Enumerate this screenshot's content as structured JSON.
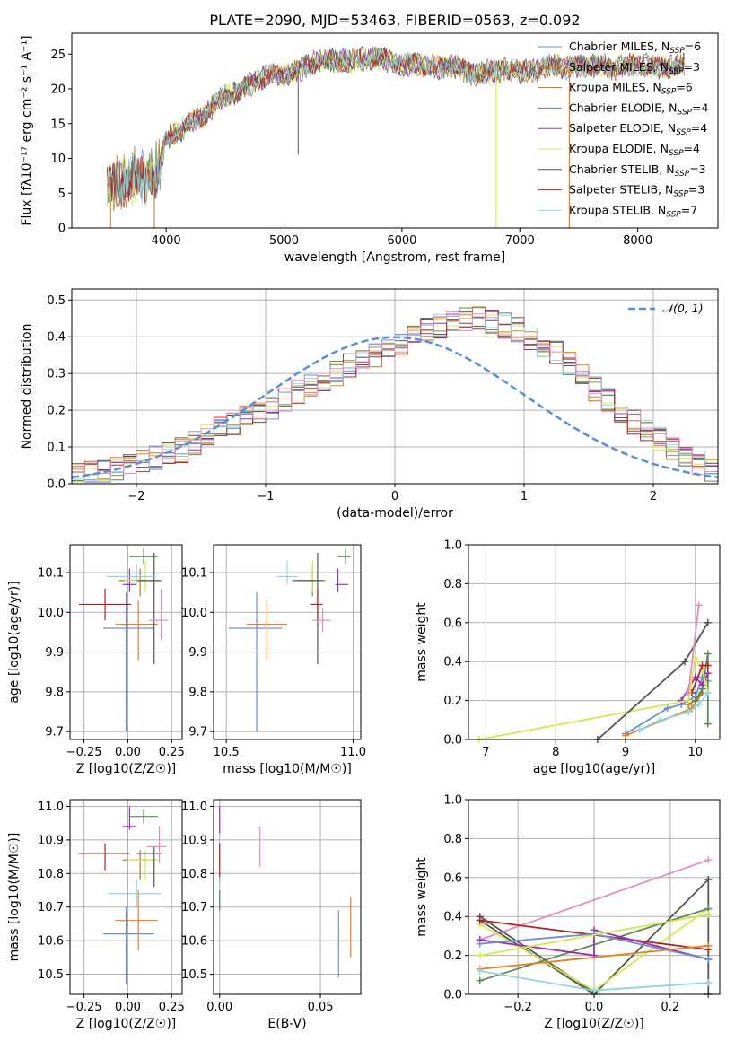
{
  "colors": {
    "chabrier_miles": "#6b8fd6",
    "salpeter_miles": "#e6801f",
    "kroupa_miles": "#b07a1a",
    "chabrier_elodie": "#5a8a5a",
    "salpeter_elodie": "#9b30b0",
    "kroupa_elodie": "#d6e84a",
    "chabrier_stelib": "#555555",
    "salpeter_stelib": "#b22222",
    "kroupa_stelib": "#8ad7e0",
    "pink": "#e88bbf",
    "normal": "#5b8ed9"
  },
  "chart_data": [
    {
      "type": "line",
      "title": "PLATE=2090, MJD=53463, FIBERID=0563, z=0.092",
      "xlabel": "wavelength [Angstrom, rest frame]",
      "ylabel": "Flux [fλ10⁻¹⁷ erg cm⁻² s⁻¹ A⁻¹]",
      "xlim": [
        3200,
        8680
      ],
      "ylim": [
        0,
        28
      ],
      "xticks": [
        "4000",
        "5000",
        "6000",
        "7000",
        "8000"
      ],
      "yticks": [
        "0",
        "5",
        "10",
        "15",
        "20",
        "25"
      ],
      "legend_position": "upper-right",
      "legend": [
        "Chabrier MILES, NSSP=6",
        "Salpeter MILES, NSSP=3",
        "Kroupa MILES, NSSP=6",
        "Chabrier ELODIE, NSSP=4",
        "Salpeter ELODIE, NSSP=4",
        "Kroupa ELODIE, NSSP=4",
        "Chabrier STELIB, NSSP=3",
        "Salpeter STELIB, NSSP=3",
        "Kroupa STELIB, NSSP=7"
      ],
      "spectrum_x": [
        3500,
        3550,
        3600,
        3650,
        3700,
        3750,
        3800,
        3850,
        3900,
        3950,
        4000,
        4100,
        4200,
        4300,
        4400,
        4500,
        4600,
        4700,
        4800,
        4900,
        5000,
        5100,
        5200,
        5300,
        5400,
        5500,
        5600,
        5700,
        5800,
        5900,
        6000,
        6100,
        6200,
        6300,
        6400,
        6500,
        6600,
        6700,
        6800,
        6900,
        7000,
        7100,
        7200,
        7300,
        7400,
        7600,
        7800,
        8000,
        8200,
        8400
      ],
      "spectrum_y": [
        5.5,
        6.0,
        6.5,
        7.0,
        7.2,
        7.5,
        7.0,
        8.0,
        7.5,
        9.0,
        13.0,
        13.8,
        15.0,
        16.0,
        17.5,
        19.0,
        19.5,
        20.5,
        21.5,
        22.0,
        22.0,
        22.5,
        23.5,
        24.0,
        24.0,
        24.0,
        24.0,
        24.5,
        24.5,
        24.0,
        23.5,
        23.5,
        23.5,
        23.0,
        23.5,
        23.0,
        22.0,
        22.5,
        22.5,
        23.0,
        22.5,
        22.5,
        23.0,
        23.5,
        23.0,
        23.5,
        23.0,
        23.5,
        23.0,
        23.5
      ]
    },
    {
      "type": "bar",
      "xlabel": "(data-model)/error",
      "ylabel": "Normed distribution",
      "xlim": [
        -2.5,
        2.5
      ],
      "ylim": [
        0,
        0.53
      ],
      "xticks": [
        "−2",
        "−1",
        "0",
        "1",
        "2"
      ],
      "yticks": [
        "0.0",
        "0.1",
        "0.2",
        "0.3",
        "0.4",
        "0.5"
      ],
      "legend": [
        "N(0,1)"
      ],
      "bin_width": 0.1,
      "bin_start": -2.5,
      "hist_mean": [
        0.02,
        0.03,
        0.03,
        0.04,
        0.05,
        0.06,
        0.07,
        0.08,
        0.09,
        0.11,
        0.13,
        0.15,
        0.16,
        0.18,
        0.2,
        0.21,
        0.23,
        0.25,
        0.27,
        0.28,
        0.3,
        0.32,
        0.33,
        0.35,
        0.37,
        0.38,
        0.4,
        0.42,
        0.43,
        0.44,
        0.45,
        0.45,
        0.44,
        0.43,
        0.42,
        0.4,
        0.38,
        0.36,
        0.33,
        0.3,
        0.26,
        0.23,
        0.2,
        0.17,
        0.15,
        0.12,
        0.1,
        0.08,
        0.06,
        0.04
      ],
      "series": [
        {
          "name": "N(0,1)",
          "mu": 0,
          "sigma": 1
        }
      ]
    },
    {
      "type": "scatter",
      "xlabel": "Z [log10(Z/Z☉)]",
      "ylabel": "age  [log10(age/yr)]",
      "xlim": [
        -0.33,
        0.31
      ],
      "ylim": [
        9.68,
        10.17
      ],
      "xticks": [
        "−0.25",
        "0.00",
        "0.25"
      ],
      "yticks": [
        "9.7",
        "9.8",
        "9.9",
        "10.0",
        "10.1"
      ],
      "points": [
        {
          "x": -0.01,
          "y": 9.96,
          "xerr": [
            0.13,
            0.16
          ],
          "yerr": [
            0.26,
            0.09
          ],
          "c": "chabrier_miles"
        },
        {
          "x": 0.06,
          "y": 9.97,
          "xerr": [
            0.13,
            0.11
          ],
          "yerr": [
            0.09,
            0.06
          ],
          "c": "salpeter_miles"
        },
        {
          "x": 0.07,
          "y": 10.08,
          "xerr": [
            0.12,
            0.1
          ],
          "yerr": [
            0.04,
            0.03
          ],
          "c": "kroupa_miles"
        },
        {
          "x": 0.09,
          "y": 10.14,
          "xerr": [
            0.08,
            0.08
          ],
          "yerr": [
            0.02,
            0.02
          ],
          "c": "chabrier_elodie"
        },
        {
          "x": 0.01,
          "y": 10.07,
          "xerr": [
            0.04,
            0.04
          ],
          "yerr": [
            0.02,
            0.04
          ],
          "c": "salpeter_elodie"
        },
        {
          "x": 0.1,
          "y": 10.08,
          "xerr": [
            0.12,
            0.08
          ],
          "yerr": [
            0.03,
            0.05
          ],
          "c": "kroupa_elodie"
        },
        {
          "x": 0.15,
          "y": 10.08,
          "xerr": [
            0.1,
            0.04
          ],
          "yerr": [
            0.21,
            0.07
          ],
          "c": "chabrier_stelib"
        },
        {
          "x": -0.13,
          "y": 10.02,
          "xerr": [
            0.15,
            0.15
          ],
          "yerr": [
            0.04,
            0.04
          ],
          "c": "salpeter_stelib"
        },
        {
          "x": 0.05,
          "y": 10.09,
          "xerr": [
            0.17,
            0.11
          ],
          "yerr": [
            0.02,
            0.03
          ],
          "c": "kroupa_stelib"
        },
        {
          "x": 0.19,
          "y": 9.98,
          "xerr": [
            0.07,
            0.04
          ],
          "yerr": [
            0.05,
            0.08
          ],
          "c": "pink"
        }
      ]
    },
    {
      "type": "scatter",
      "xlabel": "mass [log10(M/M☉)]",
      "ylabel": "",
      "xlim": [
        10.45,
        11.03
      ],
      "ylim": [
        9.68,
        10.17
      ],
      "xticks": [
        "10.5",
        "11.0"
      ],
      "yticks": [
        "9.7",
        "9.8",
        "9.9",
        "10.0",
        "10.1"
      ],
      "points": [
        {
          "x": 10.62,
          "y": 9.96,
          "xerr": [
            0.11,
            0.1
          ],
          "yerr": [
            0.26,
            0.09
          ],
          "c": "chabrier_miles"
        },
        {
          "x": 10.66,
          "y": 9.97,
          "xerr": [
            0.08,
            0.08
          ],
          "yerr": [
            0.09,
            0.06
          ],
          "c": "salpeter_miles"
        },
        {
          "x": 10.84,
          "y": 10.08,
          "xerr": [
            0.06,
            0.05
          ],
          "yerr": [
            0.04,
            0.03
          ],
          "c": "kroupa_miles"
        },
        {
          "x": 10.97,
          "y": 10.14,
          "xerr": [
            0.03,
            0.02
          ],
          "yerr": [
            0.02,
            0.02
          ],
          "c": "chabrier_elodie"
        },
        {
          "x": 10.94,
          "y": 10.07,
          "xerr": [
            0.01,
            0.04
          ],
          "yerr": [
            0.02,
            0.04
          ],
          "c": "salpeter_elodie"
        },
        {
          "x": 10.84,
          "y": 10.08,
          "xerr": [
            0.04,
            0.03
          ],
          "yerr": [
            0.03,
            0.05
          ],
          "c": "kroupa_elodie"
        },
        {
          "x": 10.86,
          "y": 10.08,
          "xerr": [
            0.1,
            0.02
          ],
          "yerr": [
            0.21,
            0.07
          ],
          "c": "chabrier_stelib"
        },
        {
          "x": 10.86,
          "y": 10.02,
          "xerr": [
            0.03,
            0.02
          ],
          "yerr": [
            0.04,
            0.04
          ],
          "c": "salpeter_stelib"
        },
        {
          "x": 10.74,
          "y": 10.09,
          "xerr": [
            0.04,
            0.04
          ],
          "yerr": [
            0.02,
            0.04
          ],
          "c": "kroupa_stelib"
        },
        {
          "x": 10.88,
          "y": 9.98,
          "xerr": [
            0.04,
            0.03
          ],
          "yerr": [
            0.03,
            0.03
          ],
          "c": "pink"
        }
      ]
    },
    {
      "type": "line",
      "xlabel": "age  [log10(age/yr)]",
      "ylabel": "mass weight",
      "xlim": [
        6.75,
        10.35
      ],
      "ylim": [
        0,
        1.0
      ],
      "xticks": [
        "7",
        "8",
        "9",
        "10"
      ],
      "yticks": [
        "0.0",
        "0.2",
        "0.4",
        "0.6",
        "0.8",
        "1.0"
      ],
      "series": [
        {
          "c": "chabrier_miles",
          "x": [
            9.0,
            9.6,
            9.8,
            10.0,
            10.1,
            10.18
          ],
          "y": [
            0.03,
            0.16,
            0.18,
            0.22,
            0.32,
            0.3
          ]
        },
        {
          "c": "salpeter_miles",
          "x": [
            9.0,
            9.95,
            10.1
          ],
          "y": [
            0.02,
            0.16,
            0.24
          ]
        },
        {
          "c": "kroupa_miles",
          "x": [
            9.9,
            10.0,
            10.1
          ],
          "y": [
            0.18,
            0.2,
            0.24
          ]
        },
        {
          "c": "chabrier_elodie",
          "x": [
            10.0,
            10.1,
            10.18,
            10.18
          ],
          "y": [
            0.2,
            0.26,
            0.44,
            0.08
          ]
        },
        {
          "c": "salpeter_elodie",
          "x": [
            9.8,
            10.0,
            10.1,
            10.18
          ],
          "y": [
            0.2,
            0.32,
            0.28,
            0.34
          ]
        },
        {
          "c": "kroupa_elodie",
          "x": [
            6.9,
            9.9,
            10.0,
            10.1,
            10.18
          ],
          "y": [
            0.0,
            0.2,
            0.42,
            0.36,
            0.24
          ]
        },
        {
          "c": "chabrier_stelib",
          "x": [
            8.6,
            9.85,
            10.18
          ],
          "y": [
            0.0,
            0.4,
            0.6
          ]
        },
        {
          "c": "salpeter_stelib",
          "x": [
            9.95,
            10.1,
            10.18
          ],
          "y": [
            0.24,
            0.38,
            0.38
          ]
        },
        {
          "c": "kroupa_stelib",
          "x": [
            9.2,
            9.5,
            9.9,
            10.05,
            10.18
          ],
          "y": [
            0.05,
            0.1,
            0.14,
            0.18,
            0.24
          ]
        },
        {
          "c": "pink",
          "x": [
            9.9,
            10.05
          ],
          "y": [
            0.24,
            0.69
          ]
        }
      ]
    },
    {
      "type": "scatter",
      "xlabel": "Z [log10(Z/Z☉)]",
      "ylabel": "mass [log10(M/M☉)]",
      "xlim": [
        -0.33,
        0.31
      ],
      "ylim": [
        10.44,
        11.02
      ],
      "xticks": [
        "−0.25",
        "0.00",
        "0.25"
      ],
      "yticks": [
        "10.5",
        "10.6",
        "10.7",
        "10.8",
        "10.9",
        "11.0"
      ],
      "points": [
        {
          "x": -0.01,
          "y": 10.62,
          "xerr": [
            0.13,
            0.16
          ],
          "yerr": [
            0.15,
            0.08
          ],
          "c": "chabrier_miles"
        },
        {
          "x": 0.06,
          "y": 10.66,
          "xerr": [
            0.13,
            0.11
          ],
          "yerr": [
            0.09,
            0.09
          ],
          "c": "salpeter_miles"
        },
        {
          "x": 0.07,
          "y": 10.84,
          "xerr": [
            0.1,
            0.1
          ],
          "yerr": [
            0.06,
            0.03
          ],
          "c": "kroupa_miles"
        },
        {
          "x": 0.09,
          "y": 10.97,
          "xerr": [
            0.08,
            0.08
          ],
          "yerr": [
            0.02,
            0.02
          ],
          "c": "chabrier_elodie"
        },
        {
          "x": 0.01,
          "y": 10.94,
          "xerr": [
            0.04,
            0.04
          ],
          "yerr": [
            0.01,
            0.06
          ],
          "c": "salpeter_elodie"
        },
        {
          "x": 0.1,
          "y": 10.84,
          "xerr": [
            0.11,
            0.07
          ],
          "yerr": [
            0.06,
            0.03
          ],
          "c": "kroupa_elodie"
        },
        {
          "x": 0.15,
          "y": 10.86,
          "xerr": [
            0.1,
            0.04
          ],
          "yerr": [
            0.1,
            0.02
          ],
          "c": "chabrier_stelib"
        },
        {
          "x": -0.13,
          "y": 10.86,
          "xerr": [
            0.15,
            0.14
          ],
          "yerr": [
            0.05,
            0.03
          ],
          "c": "salpeter_stelib"
        },
        {
          "x": 0.05,
          "y": 10.74,
          "xerr": [
            0.16,
            0.14
          ],
          "yerr": [
            0.04,
            0.04
          ],
          "c": "kroupa_stelib"
        },
        {
          "x": 0.18,
          "y": 10.88,
          "xerr": [
            0.07,
            0.04
          ],
          "yerr": [
            0.05,
            0.06
          ],
          "c": "pink"
        }
      ]
    },
    {
      "type": "scatter",
      "xlabel": "E(B-V)",
      "ylabel": "",
      "xlim": [
        -0.003,
        0.07
      ],
      "ylim": [
        10.44,
        11.02
      ],
      "xticks": [
        "0.00",
        "0.05"
      ],
      "yticks": [
        "10.5",
        "10.6",
        "10.7",
        "10.8",
        "10.9",
        "11.0"
      ],
      "points": [
        {
          "x": 0.0,
          "y": 10.96,
          "yerr": [
            0.04,
            0.04
          ],
          "c": "salpeter_elodie"
        },
        {
          "x": 0.0,
          "y": 10.83,
          "yerr": [
            0.06,
            0.06
          ],
          "c": "salpeter_stelib"
        },
        {
          "x": 0.0,
          "y": 10.74,
          "yerr": [
            0.05,
            0.05
          ],
          "c": "kroupa_stelib"
        },
        {
          "x": 0.0,
          "y": 10.72,
          "yerr": [
            0.03,
            0.03
          ],
          "c": "chabrier_elodie"
        },
        {
          "x": 0.02,
          "y": 10.88,
          "yerr": [
            0.06,
            0.06
          ],
          "c": "pink"
        },
        {
          "x": 0.065,
          "y": 10.64,
          "yerr": [
            0.09,
            0.09
          ],
          "c": "salpeter_miles"
        },
        {
          "x": 0.059,
          "y": 10.59,
          "yerr": [
            0.1,
            0.1
          ],
          "c": "chabrier_miles"
        }
      ]
    },
    {
      "type": "line",
      "xlabel": "Z [log10(Z/Z☉)]",
      "ylabel": "mass weight",
      "xlim": [
        -0.33,
        0.33
      ],
      "ylim": [
        0,
        1.0
      ],
      "xticks": [
        "−0.2",
        "0.0",
        "0.2"
      ],
      "yticks": [
        "0.0",
        "0.2",
        "0.4",
        "0.6",
        "0.8",
        "1.0"
      ],
      "series": [
        {
          "c": "pink",
          "x": [
            -0.3,
            0.3
          ],
          "y": [
            0.28,
            0.69
          ]
        },
        {
          "c": "chabrier_stelib",
          "x": [
            -0.3,
            0.0,
            0.3,
            0.3
          ],
          "y": [
            0.38,
            0.0,
            0.59,
            0.0
          ]
        },
        {
          "c": "chabrier_stelib",
          "x": [
            -0.3,
            0.0
          ],
          "y": [
            0.4,
            0.01
          ]
        },
        {
          "c": "kroupa_elodie",
          "x": [
            -0.3,
            0.0,
            0.3
          ],
          "y": [
            0.36,
            0.02,
            0.44
          ]
        },
        {
          "c": "chabrier_elodie",
          "x": [
            -0.3,
            0.3
          ],
          "y": [
            0.07,
            0.44
          ]
        },
        {
          "c": "salpeter_stelib",
          "x": [
            -0.3,
            0.3
          ],
          "y": [
            0.38,
            0.23
          ]
        },
        {
          "c": "salpeter_elodie",
          "x": [
            -0.3,
            0.0,
            0.0,
            0.3
          ],
          "y": [
            0.28,
            0.2,
            0.33,
            0.18
          ]
        },
        {
          "c": "chabrier_miles",
          "x": [
            -0.3,
            0.0,
            0.3
          ],
          "y": [
            0.26,
            0.31,
            0.18
          ]
        },
        {
          "c": "salpeter_miles",
          "x": [
            -0.3,
            0.3
          ],
          "y": [
            0.13,
            0.25
          ]
        },
        {
          "c": "kroupa_stelib",
          "x": [
            -0.3,
            0.0,
            0.3
          ],
          "y": [
            0.12,
            0.02,
            0.06
          ]
        },
        {
          "c": "kroupa_elodie",
          "x": [
            -0.3,
            0.3
          ],
          "y": [
            0.2,
            0.41
          ]
        }
      ]
    }
  ]
}
